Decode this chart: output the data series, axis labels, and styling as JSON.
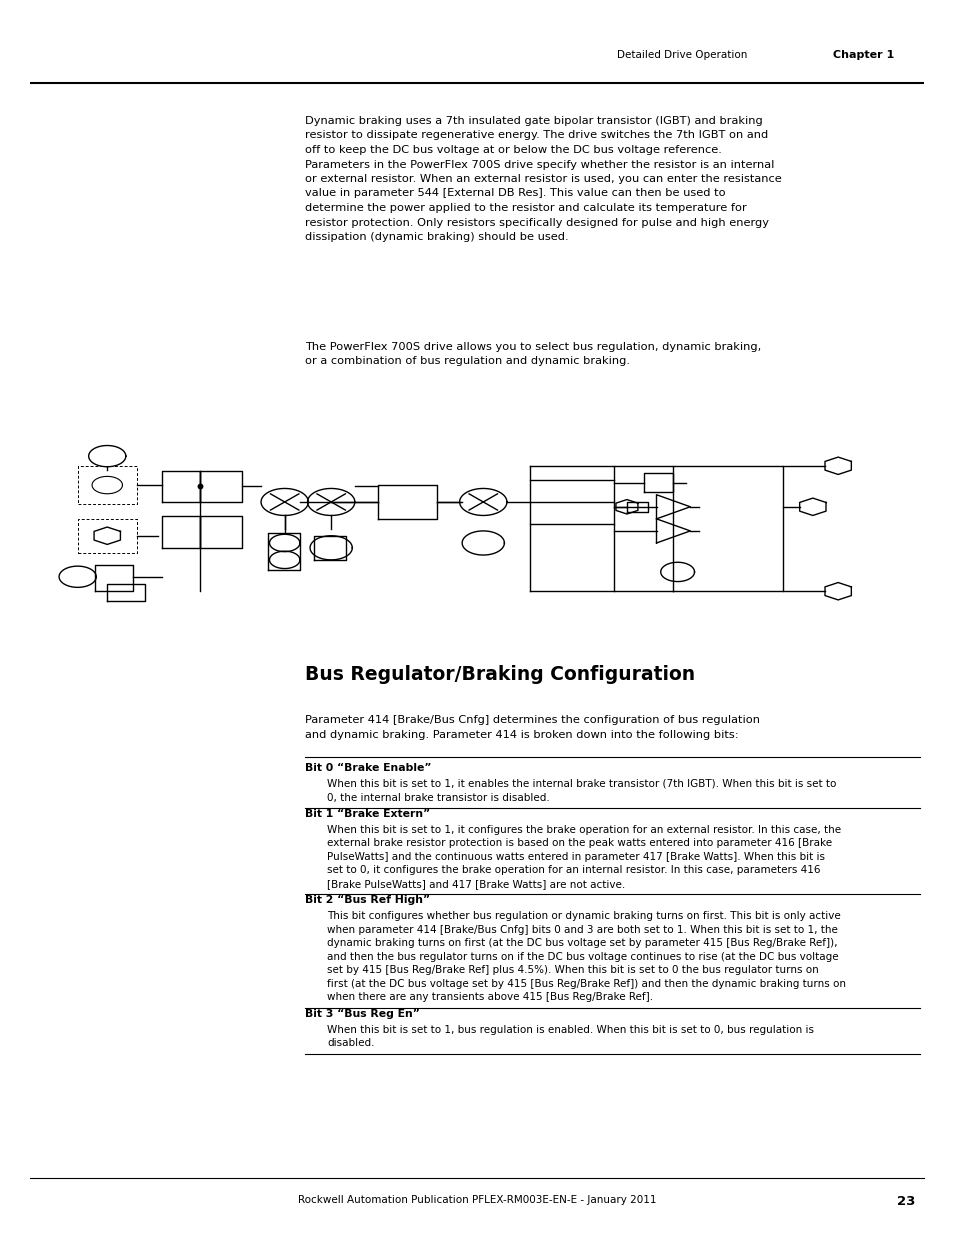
{
  "page_width": 9.54,
  "page_height": 12.35,
  "bg_color": "#ffffff",
  "header_text_left": "Detailed Drive Operation",
  "header_text_right": "Chapter 1",
  "footer_text": "Rockwell Automation Publication PFLEX-RM003E-EN-E - January 2011",
  "footer_page": "23",
  "paragraph1": "Dynamic braking uses a 7th insulated gate bipolar transistor (IGBT) and braking\nresistor to dissipate regenerative energy. The drive switches the 7th IGBT on and\noff to keep the DC bus voltage at or below the DC bus voltage reference.\nParameters in the PowerFlex 700S drive specify whether the resistor is an internal\nor external resistor. When an external resistor is used, you can enter the resistance\nvalue in parameter 544 [External DB Res]. This value can then be used to\ndetermine the power applied to the resistor and calculate its temperature for\nresistor protection. Only resistors specifically designed for pulse and high energy\ndissipation (dynamic braking) should be used.",
  "paragraph2": "The PowerFlex 700S drive allows you to select bus regulation, dynamic braking,\nor a combination of bus regulation and dynamic braking.",
  "section_title": "Bus Regulator/Braking Configuration",
  "section_intro": "Parameter 414 [Brake/Bus Cnfg] determines the configuration of bus regulation\nand dynamic braking. Parameter 414 is broken down into the following bits:",
  "bits": [
    {
      "label": "Bit 0 “Brake Enable”",
      "text": "When this bit is set to 1, it enables the internal brake transistor (7th IGBT). When this bit is set to\n0, the internal brake transistor is disabled."
    },
    {
      "label": "Bit 1 “Brake Extern”",
      "text": "When this bit is set to 1, it configures the brake operation for an external resistor. In this case, the\nexternal brake resistor protection is based on the peak watts entered into parameter 416 [Brake\nPulseWatts] and the continuous watts entered in parameter 417 [Brake Watts]. When this bit is\nset to 0, it configures the brake operation for an internal resistor. In this case, parameters 416\n[Brake PulseWatts] and 417 [Brake Watts] are not active."
    },
    {
      "label": "Bit 2 “Bus Ref High”",
      "text": "This bit configures whether bus regulation or dynamic braking turns on first. This bit is only active\nwhen parameter 414 [Brake/Bus Cnfg] bits 0 and 3 are both set to 1. When this bit is set to 1, the\ndynamic braking turns on first (at the DC bus voltage set by parameter 415 [Bus Reg/Brake Ref]),\nand then the bus regulator turns on if the DC bus voltage continues to rise (at the DC bus voltage\nset by 415 [Bus Reg/Brake Ref] plus 4.5%). When this bit is set to 0 the bus regulator turns on\nfirst (at the DC bus voltage set by 415 [Bus Reg/Brake Ref]) and then the dynamic braking turns on\nwhen there are any transients above 415 [Bus Reg/Brake Ref]."
    },
    {
      "label": "Bit 3 “Bus Reg En”",
      "text": "When this bit is set to 1, bus regulation is enabled. When this bit is set to 0, bus regulation is\ndisabled."
    }
  ],
  "font_body": 8.2,
  "font_label": 7.8,
  "font_bit_label": 7.8,
  "font_bit_text": 7.5,
  "font_section_title": 13.5,
  "font_header": 7.5,
  "font_footer": 7.5
}
